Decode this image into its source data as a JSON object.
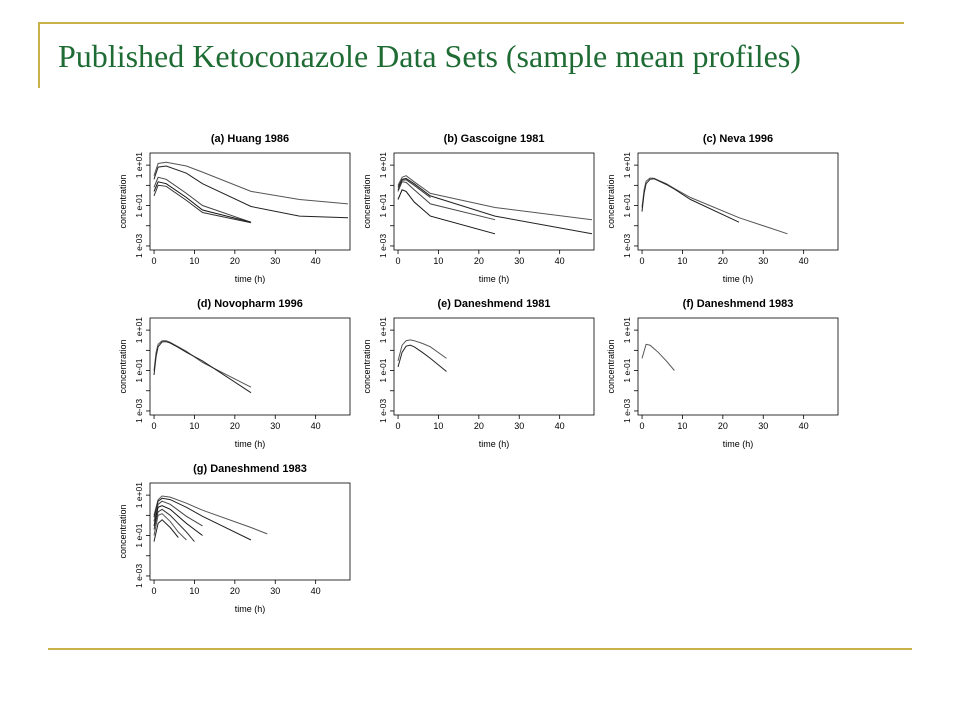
{
  "slide": {
    "title": "Published Ketoconazole Data Sets (sample mean profiles)"
  },
  "colors": {
    "title": "#1e6b34",
    "rule": "#c9b24a"
  },
  "chart_data": [
    {
      "type": "line",
      "title": "(a) Huang 1986",
      "xlabel": "time (h)",
      "ylabel": "concentration",
      "xticks": [
        0,
        10,
        20,
        30,
        40
      ],
      "yticks": [
        "1 e-03",
        "1 e-01",
        "1 e+01"
      ],
      "xlim": [
        -1,
        48.5
      ],
      "ylog": true,
      "ylim_log10": [
        -3.2,
        1.6
      ],
      "series": [
        {
          "x": [
            0,
            1,
            3,
            8,
            12,
            24,
            36,
            48
          ],
          "y": [
            3,
            12,
            14,
            9,
            4.5,
            0.5,
            0.2,
            0.12
          ]
        },
        {
          "x": [
            0,
            1,
            3,
            8,
            12,
            24,
            36,
            48
          ],
          "y": [
            2,
            8,
            9,
            4,
            1.2,
            0.09,
            0.03,
            0.025
          ]
        },
        {
          "x": [
            0,
            1,
            3,
            8,
            12,
            24
          ],
          "y": [
            0.8,
            2.5,
            2,
            0.4,
            0.1,
            0.015
          ]
        },
        {
          "x": [
            0,
            1,
            3,
            8,
            12,
            24
          ],
          "y": [
            0.5,
            1.5,
            1.2,
            0.25,
            0.06,
            0.015
          ]
        },
        {
          "x": [
            0,
            1,
            3,
            8,
            12,
            24
          ],
          "y": [
            0.3,
            1,
            0.9,
            0.18,
            0.045,
            0.014
          ]
        }
      ]
    },
    {
      "type": "line",
      "title": "(b) Gascoigne 1981",
      "xlabel": "time (h)",
      "ylabel": "concentration",
      "xticks": [
        0,
        10,
        20,
        30,
        40
      ],
      "yticks": [
        "1 e-03",
        "1 e-01",
        "1 e+01"
      ],
      "xlim": [
        -1,
        48.5
      ],
      "ylog": true,
      "ylim_log10": [
        -3.2,
        1.6
      ],
      "series": [
        {
          "x": [
            0,
            1,
            2,
            4,
            8,
            24,
            48
          ],
          "y": [
            1,
            2.5,
            3,
            1.5,
            0.4,
            0.08,
            0.02
          ]
        },
        {
          "x": [
            0,
            1,
            2,
            4,
            8,
            24,
            48
          ],
          "y": [
            0.8,
            2,
            2.2,
            1.2,
            0.3,
            0.03,
            0.004
          ]
        },
        {
          "x": [
            0,
            1,
            2,
            4,
            8,
            24
          ],
          "y": [
            0.5,
            1.5,
            1.4,
            0.6,
            0.12,
            0.02
          ]
        },
        {
          "x": [
            0,
            1,
            2,
            4,
            8,
            24
          ],
          "y": [
            0.2,
            0.6,
            0.5,
            0.15,
            0.03,
            0.004
          ]
        },
        {
          "x": [
            0,
            1,
            2,
            4,
            8
          ],
          "y": [
            0.6,
            1.8,
            1.9,
            1,
            0.25
          ]
        }
      ]
    },
    {
      "type": "line",
      "title": "(c) Neva 1996",
      "xlabel": "time (h)",
      "ylabel": "concentration",
      "xticks": [
        0,
        10,
        20,
        30,
        40
      ],
      "yticks": [
        "1 e-03",
        "1 e-01",
        "1 e+01"
      ],
      "xlim": [
        -1,
        48.5
      ],
      "ylog": true,
      "ylim_log10": [
        -3.2,
        1.6
      ],
      "series": [
        {
          "x": [
            0,
            0.5,
            1,
            2,
            3,
            4,
            6,
            8,
            12,
            24,
            36
          ],
          "y": [
            0.08,
            0.6,
            1.6,
            2.3,
            2.2,
            1.8,
            1.2,
            0.7,
            0.25,
            0.025,
            0.004
          ]
        },
        {
          "x": [
            0,
            0.5,
            1,
            2,
            3,
            4,
            6,
            8,
            12,
            24
          ],
          "y": [
            0.05,
            0.4,
            1.2,
            2,
            2.1,
            1.7,
            1.1,
            0.65,
            0.2,
            0.015
          ]
        }
      ]
    },
    {
      "type": "line",
      "title": "(d) Novopharm 1996",
      "xlabel": "time (h)",
      "ylabel": "concentration",
      "xticks": [
        0,
        10,
        20,
        30,
        40
      ],
      "yticks": [
        "1 e-03",
        "1 e-01",
        "1 e+01"
      ],
      "xlim": [
        -1,
        48.5
      ],
      "ylog": true,
      "ylim_log10": [
        -3.2,
        1.6
      ],
      "series": [
        {
          "x": [
            0,
            0.5,
            1,
            2,
            3,
            4,
            6,
            8,
            12,
            24
          ],
          "y": [
            0.1,
            0.8,
            2,
            3,
            3,
            2.5,
            1.5,
            0.9,
            0.25,
            0.015
          ]
        },
        {
          "x": [
            0,
            0.5,
            1,
            2,
            3,
            4,
            6,
            8,
            12,
            24
          ],
          "y": [
            0.06,
            0.5,
            1.5,
            2.6,
            2.7,
            2.3,
            1.4,
            0.8,
            0.3,
            0.008
          ]
        }
      ]
    },
    {
      "type": "line",
      "title": "(e) Daneshmend 1981",
      "xlabel": "time (h)",
      "ylabel": "concentration",
      "xticks": [
        0,
        10,
        20,
        30,
        40
      ],
      "yticks": [
        "1 e-03",
        "1 e-01",
        "1 e+01"
      ],
      "xlim": [
        -1,
        48.5
      ],
      "ylog": true,
      "ylim_log10": [
        -3.2,
        1.6
      ],
      "series": [
        {
          "x": [
            0,
            1,
            2,
            3,
            4,
            6,
            8,
            12
          ],
          "y": [
            0.3,
            1.8,
            3,
            3.3,
            3,
            2.2,
            1.5,
            0.4
          ]
        },
        {
          "x": [
            0,
            1,
            2,
            3,
            4,
            6,
            8,
            12
          ],
          "y": [
            0.15,
            0.8,
            1.6,
            1.8,
            1.5,
            0.8,
            0.4,
            0.09
          ]
        }
      ]
    },
    {
      "type": "line",
      "title": "(f) Daneshmend 1983",
      "xlabel": "time (h)",
      "ylabel": "concentration",
      "xticks": [
        0,
        10,
        20,
        30,
        40
      ],
      "yticks": [
        "1 e-03",
        "1 e-01",
        "1 e+01"
      ],
      "xlim": [
        -1,
        48.5
      ],
      "ylog": true,
      "ylim_log10": [
        -3.2,
        1.6
      ],
      "series": [
        {
          "x": [
            0,
            1,
            2,
            4,
            6,
            8
          ],
          "y": [
            0.4,
            2,
            1.8,
            0.8,
            0.3,
            0.1
          ]
        }
      ]
    },
    {
      "type": "line",
      "title": "(g) Daneshmend 1983",
      "xlabel": "time (h)",
      "ylabel": "concentration",
      "xticks": [
        0,
        10,
        20,
        30,
        40
      ],
      "yticks": [
        "1 e-03",
        "1 e-01",
        "1 e+01"
      ],
      "xlim": [
        -1,
        48.5
      ],
      "ylog": true,
      "ylim_log10": [
        -3.2,
        1.6
      ],
      "series": [
        {
          "x": [
            0,
            1,
            2,
            4,
            8,
            12,
            24,
            28
          ],
          "y": [
            1,
            6,
            9,
            8,
            4,
            1.8,
            0.25,
            0.12
          ]
        },
        {
          "x": [
            0,
            1,
            2,
            4,
            8,
            12,
            24
          ],
          "y": [
            0.8,
            5,
            7,
            6,
            2.5,
            0.9,
            0.06
          ]
        },
        {
          "x": [
            0,
            1,
            2,
            4,
            8,
            12
          ],
          "y": [
            0.5,
            3.5,
            5,
            3.5,
            0.9,
            0.3
          ]
        },
        {
          "x": [
            0,
            1,
            2,
            4,
            8,
            12
          ],
          "y": [
            0.3,
            2.5,
            3,
            2,
            0.4,
            0.1
          ]
        },
        {
          "x": [
            0,
            1,
            2,
            4,
            8,
            10
          ],
          "y": [
            0.2,
            1.5,
            2,
            1,
            0.15,
            0.05
          ]
        },
        {
          "x": [
            0,
            1,
            2,
            4,
            6,
            8
          ],
          "y": [
            0.1,
            1,
            1.2,
            0.5,
            0.15,
            0.06
          ]
        },
        {
          "x": [
            0,
            1,
            2,
            4,
            6
          ],
          "y": [
            0.05,
            0.4,
            0.6,
            0.25,
            0.08
          ]
        }
      ]
    }
  ]
}
